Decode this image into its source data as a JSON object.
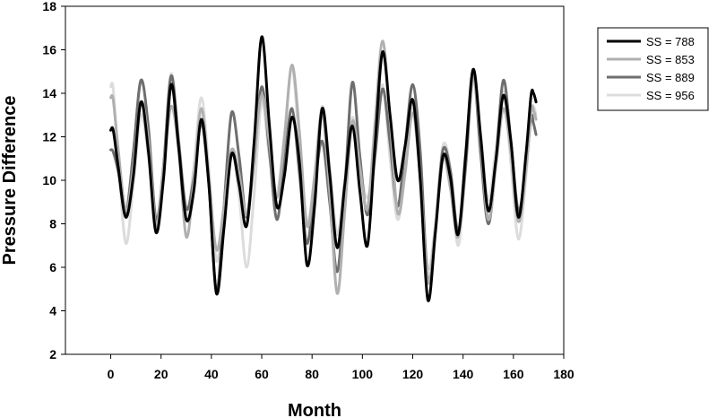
{
  "chart_data": {
    "type": "line",
    "title": "",
    "xlabel": "Month",
    "ylabel": "Pressure Difference",
    "xlim": [
      -18,
      180
    ],
    "ylim": [
      2,
      18
    ],
    "xticks": [
      0,
      20,
      40,
      60,
      80,
      100,
      120,
      140,
      160,
      180
    ],
    "yticks": [
      2,
      4,
      6,
      8,
      10,
      12,
      14,
      16,
      18
    ],
    "grid": false,
    "legend_position": "top-right",
    "series": [
      {
        "name": "SS = 788",
        "color": "#000000",
        "points": [
          [
            0,
            12.3
          ],
          [
            1,
            12.3
          ],
          [
            3,
            10.6
          ],
          [
            6,
            8.3
          ],
          [
            9,
            10.2
          ],
          [
            12,
            13.6
          ],
          [
            15,
            11.3
          ],
          [
            18,
            7.6
          ],
          [
            21,
            10.1
          ],
          [
            24,
            14.4
          ],
          [
            27,
            11.5
          ],
          [
            30,
            8.2
          ],
          [
            33,
            9.5
          ],
          [
            36,
            12.8
          ],
          [
            39,
            9.8
          ],
          [
            42,
            4.8
          ],
          [
            45,
            7.8
          ],
          [
            48,
            11.2
          ],
          [
            51,
            9.8
          ],
          [
            54,
            7.9
          ],
          [
            57,
            11.8
          ],
          [
            60,
            16.6
          ],
          [
            63,
            12.6
          ],
          [
            66,
            8.8
          ],
          [
            69,
            10.2
          ],
          [
            72,
            12.9
          ],
          [
            75,
            10.8
          ],
          [
            78,
            6.1
          ],
          [
            81,
            8.8
          ],
          [
            84,
            13.3
          ],
          [
            87,
            10.3
          ],
          [
            90,
            6.9
          ],
          [
            93,
            9.8
          ],
          [
            96,
            12.5
          ],
          [
            99,
            9.5
          ],
          [
            102,
            7.0
          ],
          [
            105,
            11.6
          ],
          [
            108,
            15.9
          ],
          [
            111,
            13.0
          ],
          [
            114,
            10.0
          ],
          [
            117,
            11.6
          ],
          [
            120,
            13.7
          ],
          [
            123,
            10.0
          ],
          [
            126,
            4.5
          ],
          [
            129,
            7.6
          ],
          [
            132,
            11.1
          ],
          [
            135,
            10.1
          ],
          [
            138,
            7.5
          ],
          [
            141,
            11.1
          ],
          [
            144,
            15.1
          ],
          [
            147,
            12.0
          ],
          [
            150,
            8.6
          ],
          [
            153,
            10.9
          ],
          [
            156,
            13.9
          ],
          [
            159,
            11.8
          ],
          [
            162,
            8.3
          ],
          [
            165,
            11.2
          ],
          [
            167,
            13.9
          ],
          [
            168,
            14.0
          ],
          [
            169,
            13.6
          ]
        ]
      },
      {
        "name": "SS = 853",
        "color": "#b0b0b0",
        "points": [
          [
            0,
            13.8
          ],
          [
            1,
            13.7
          ],
          [
            3,
            11.4
          ],
          [
            6,
            8.6
          ],
          [
            9,
            10.6
          ],
          [
            12,
            13.6
          ],
          [
            15,
            11.8
          ],
          [
            18,
            7.9
          ],
          [
            21,
            10.6
          ],
          [
            24,
            13.4
          ],
          [
            27,
            11.4
          ],
          [
            30,
            7.4
          ],
          [
            33,
            9.9
          ],
          [
            36,
            13.3
          ],
          [
            39,
            10.1
          ],
          [
            42,
            6.8
          ],
          [
            45,
            8.8
          ],
          [
            48,
            11.4
          ],
          [
            51,
            10.3
          ],
          [
            54,
            8.4
          ],
          [
            57,
            11.2
          ],
          [
            60,
            13.9
          ],
          [
            63,
            11.8
          ],
          [
            66,
            9.2
          ],
          [
            69,
            11.9
          ],
          [
            72,
            15.3
          ],
          [
            75,
            12.2
          ],
          [
            78,
            7.9
          ],
          [
            81,
            10.2
          ],
          [
            84,
            13.1
          ],
          [
            87,
            9.5
          ],
          [
            90,
            4.8
          ],
          [
            93,
            8.6
          ],
          [
            96,
            12.7
          ],
          [
            99,
            10.6
          ],
          [
            102,
            8.7
          ],
          [
            105,
            12.6
          ],
          [
            108,
            16.4
          ],
          [
            111,
            12.8
          ],
          [
            114,
            8.5
          ],
          [
            117,
            10.4
          ],
          [
            120,
            13.1
          ],
          [
            123,
            10.1
          ],
          [
            126,
            5.3
          ],
          [
            129,
            7.8
          ],
          [
            132,
            11.0
          ],
          [
            135,
            9.6
          ],
          [
            138,
            7.4
          ],
          [
            141,
            11.3
          ],
          [
            144,
            14.8
          ],
          [
            147,
            11.8
          ],
          [
            150,
            8.2
          ],
          [
            153,
            10.6
          ],
          [
            156,
            13.3
          ],
          [
            159,
            11.3
          ],
          [
            162,
            8.1
          ],
          [
            165,
            10.5
          ],
          [
            167,
            13.2
          ],
          [
            168,
            13.2
          ],
          [
            169,
            12.8
          ]
        ]
      },
      {
        "name": "SS = 889",
        "color": "#6e6e6e",
        "points": [
          [
            0,
            11.4
          ],
          [
            1,
            11.3
          ],
          [
            3,
            10.4
          ],
          [
            6,
            8.5
          ],
          [
            9,
            11.3
          ],
          [
            12,
            14.6
          ],
          [
            15,
            12.4
          ],
          [
            18,
            8.2
          ],
          [
            21,
            10.7
          ],
          [
            24,
            14.8
          ],
          [
            27,
            11.8
          ],
          [
            30,
            8.7
          ],
          [
            33,
            10.1
          ],
          [
            36,
            12.6
          ],
          [
            39,
            9.8
          ],
          [
            42,
            4.9
          ],
          [
            45,
            8.8
          ],
          [
            48,
            13.1
          ],
          [
            51,
            11.1
          ],
          [
            54,
            8.3
          ],
          [
            57,
            11.0
          ],
          [
            60,
            14.3
          ],
          [
            63,
            11.4
          ],
          [
            66,
            8.2
          ],
          [
            69,
            10.8
          ],
          [
            72,
            13.3
          ],
          [
            75,
            10.3
          ],
          [
            78,
            7.1
          ],
          [
            81,
            9.7
          ],
          [
            84,
            11.8
          ],
          [
            87,
            9.0
          ],
          [
            90,
            5.8
          ],
          [
            93,
            9.6
          ],
          [
            96,
            14.5
          ],
          [
            99,
            11.1
          ],
          [
            102,
            8.4
          ],
          [
            105,
            11.1
          ],
          [
            108,
            14.2
          ],
          [
            111,
            11.7
          ],
          [
            114,
            8.8
          ],
          [
            117,
            11.6
          ],
          [
            120,
            14.4
          ],
          [
            123,
            11.3
          ],
          [
            126,
            5.4
          ],
          [
            129,
            7.8
          ],
          [
            132,
            11.4
          ],
          [
            135,
            10.4
          ],
          [
            138,
            7.7
          ],
          [
            141,
            10.6
          ],
          [
            144,
            14.9
          ],
          [
            147,
            11.2
          ],
          [
            150,
            8.0
          ],
          [
            153,
            10.8
          ],
          [
            156,
            14.6
          ],
          [
            159,
            11.8
          ],
          [
            162,
            8.6
          ],
          [
            165,
            10.7
          ],
          [
            167,
            12.9
          ],
          [
            168,
            12.6
          ],
          [
            169,
            12.1
          ]
        ]
      },
      {
        "name": "SS = 956",
        "color": "#dcdcdc",
        "points": [
          [
            0,
            14.3
          ],
          [
            1,
            14.2
          ],
          [
            3,
            11.0
          ],
          [
            6,
            7.1
          ],
          [
            9,
            9.8
          ],
          [
            12,
            13.0
          ],
          [
            15,
            11.0
          ],
          [
            18,
            7.9
          ],
          [
            21,
            10.6
          ],
          [
            24,
            14.9
          ],
          [
            27,
            11.6
          ],
          [
            30,
            8.4
          ],
          [
            33,
            10.6
          ],
          [
            36,
            13.8
          ],
          [
            39,
            10.5
          ],
          [
            42,
            6.3
          ],
          [
            45,
            8.8
          ],
          [
            48,
            11.4
          ],
          [
            51,
            9.3
          ],
          [
            54,
            6.0
          ],
          [
            57,
            9.4
          ],
          [
            60,
            13.6
          ],
          [
            63,
            11.1
          ],
          [
            66,
            9.4
          ],
          [
            69,
            12.1
          ],
          [
            72,
            15.2
          ],
          [
            75,
            11.6
          ],
          [
            78,
            8.1
          ],
          [
            81,
            10.1
          ],
          [
            84,
            13.4
          ],
          [
            87,
            10.7
          ],
          [
            90,
            7.5
          ],
          [
            93,
            10.1
          ],
          [
            96,
            12.9
          ],
          [
            99,
            10.6
          ],
          [
            102,
            9.2
          ],
          [
            105,
            11.3
          ],
          [
            108,
            14.4
          ],
          [
            111,
            11.0
          ],
          [
            114,
            8.2
          ],
          [
            117,
            10.3
          ],
          [
            120,
            13.3
          ],
          [
            123,
            10.3
          ],
          [
            126,
            6.0
          ],
          [
            129,
            8.0
          ],
          [
            132,
            11.6
          ],
          [
            135,
            10.5
          ],
          [
            138,
            7.0
          ],
          [
            141,
            10.5
          ],
          [
            144,
            14.6
          ],
          [
            147,
            12.1
          ],
          [
            150,
            9.1
          ],
          [
            153,
            11.4
          ],
          [
            156,
            14.1
          ],
          [
            159,
            10.8
          ],
          [
            162,
            7.3
          ],
          [
            165,
            10.2
          ],
          [
            167,
            13.1
          ],
          [
            168,
            13.4
          ],
          [
            169,
            13.0
          ]
        ]
      }
    ]
  }
}
